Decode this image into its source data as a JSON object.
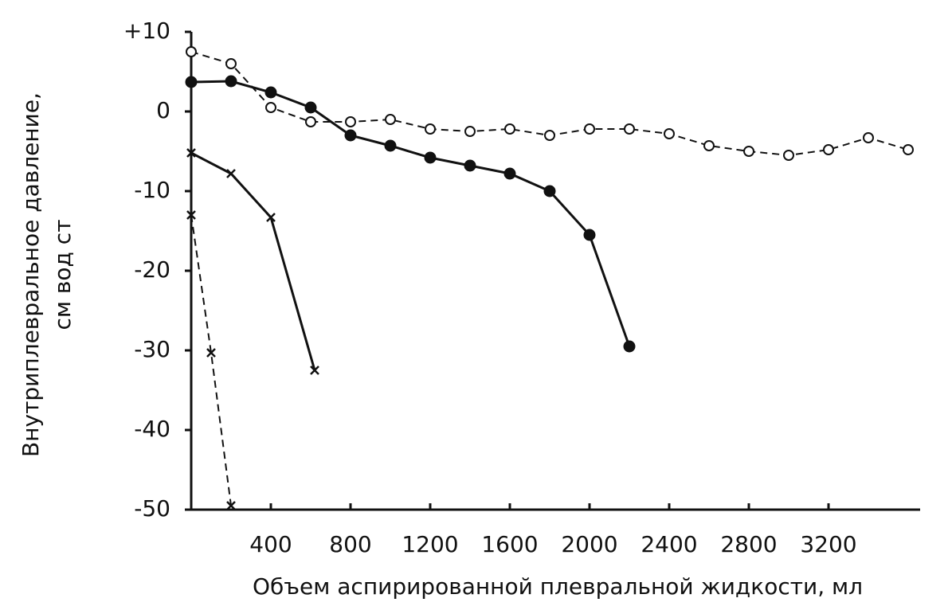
{
  "chart_data": {
    "type": "line",
    "x_label": "Объем аспирированной плевральной жидкости, мл",
    "y_label": [
      "Внутриплевральное давление,",
      "см вод ст"
    ],
    "xlim": [
      0,
      3660
    ],
    "ylim": [
      -50,
      10
    ],
    "xticks": [
      400,
      800,
      1200,
      1600,
      2000,
      2400,
      2800,
      3200
    ],
    "yticks": [
      {
        "value": 10,
        "label": "+10"
      },
      0,
      -10,
      -20,
      -30,
      -40,
      -50
    ],
    "grid": false,
    "series": [
      {
        "color": "#111",
        "marker": "open-circle",
        "dashed": true,
        "x": [
          0,
          200,
          400,
          600,
          800,
          1000,
          1200,
          1400,
          1600,
          1800,
          2000,
          2200,
          2400,
          2600,
          2800,
          3000,
          3200,
          3400,
          3600
        ],
        "values": [
          7.5,
          6,
          0.5,
          -1.3,
          -1.3,
          -1,
          -2.2,
          -2.5,
          -2.2,
          -3,
          -2.2,
          -2.2,
          -2.8,
          -4.3,
          -5,
          -5.5,
          -4.8,
          -3.3,
          -4.8
        ]
      },
      {
        "color": "#111",
        "marker": "filled-circle",
        "dashed": false,
        "x": [
          0,
          200,
          400,
          600,
          800,
          1000,
          1200,
          1400,
          1600,
          1800,
          2000,
          2200
        ],
        "values": [
          3.7,
          3.8,
          2.4,
          0.5,
          -3,
          -4.3,
          -5.8,
          -6.8,
          -7.8,
          -10,
          -15.5,
          -29.5
        ]
      },
      {
        "color": "#111",
        "marker": "x",
        "dashed": false,
        "x": [
          0,
          200,
          400,
          620
        ],
        "values": [
          -5.2,
          -7.8,
          -13.3,
          -32.5
        ]
      },
      {
        "color": "#111",
        "marker": "x",
        "dashed": true,
        "x": [
          0,
          100,
          200
        ],
        "values": [
          -13,
          -30.3,
          -49.5
        ]
      }
    ]
  }
}
